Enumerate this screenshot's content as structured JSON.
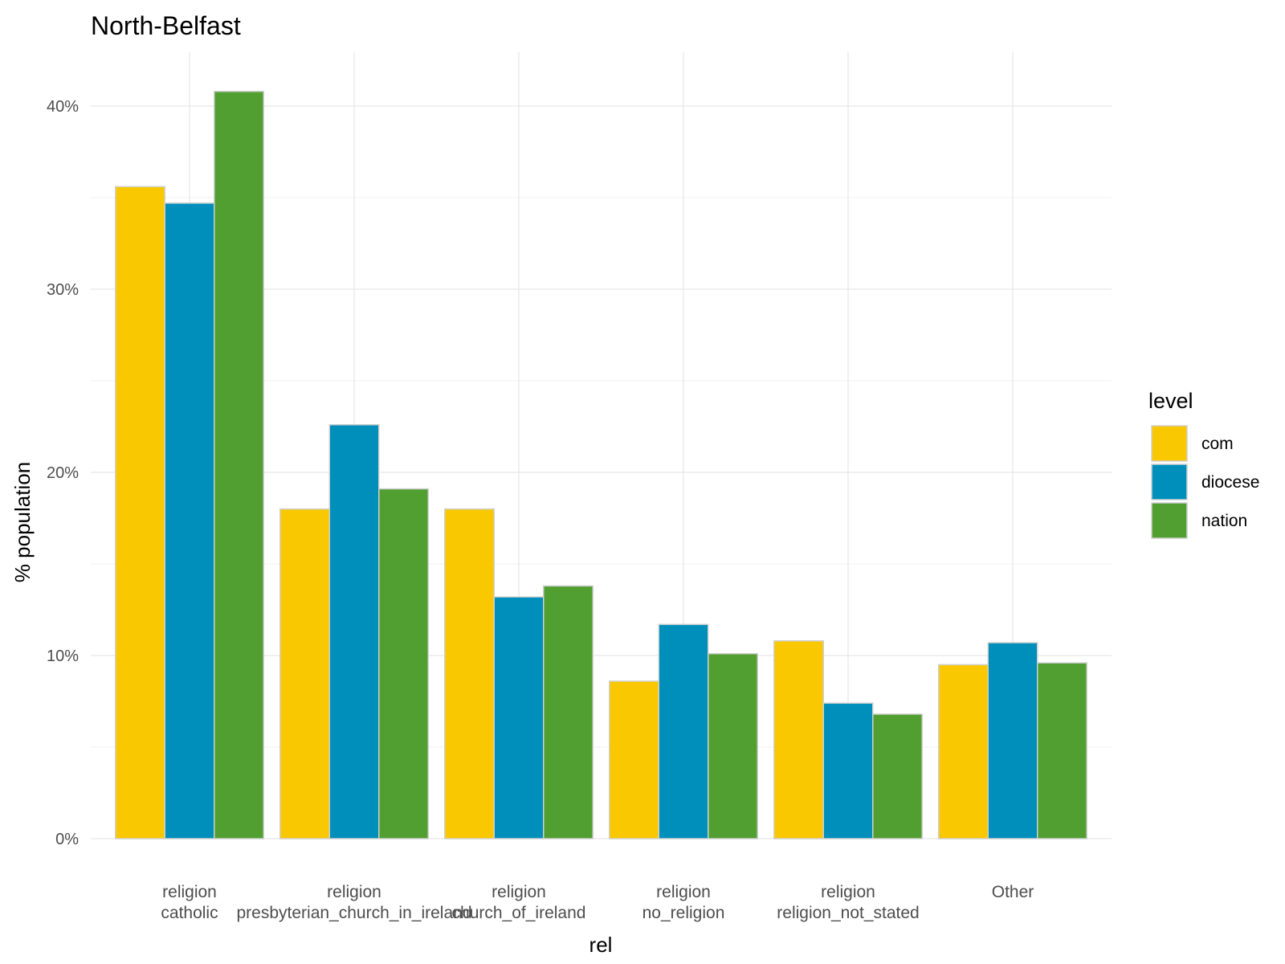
{
  "chart_data": {
    "type": "bar",
    "title": "North-Belfast",
    "xlabel": "rel",
    "ylabel": "% population",
    "ylim": [
      0,
      42
    ],
    "yticks": [
      0,
      10,
      20,
      30,
      40
    ],
    "ytick_labels": [
      "0%",
      "10%",
      "20%",
      "30%",
      "40%"
    ],
    "grid": true,
    "legend_position": "right",
    "legend_title": "level",
    "categories": [
      [
        "religion",
        "catholic"
      ],
      [
        "religion",
        "presbyterian_church_in_ireland"
      ],
      [
        "religion",
        "church_of_ireland"
      ],
      [
        "religion",
        "no_religion"
      ],
      [
        "religion",
        "religion_not_stated"
      ],
      [
        "Other"
      ]
    ],
    "series": [
      {
        "name": "com",
        "color": "#F9C800",
        "values": [
          35.6,
          18.0,
          18.0,
          8.6,
          10.8,
          9.5
        ]
      },
      {
        "name": "diocese",
        "color": "#008FBB",
        "values": [
          34.7,
          22.6,
          13.2,
          11.7,
          7.4,
          10.7
        ]
      },
      {
        "name": "nation",
        "color": "#519F31",
        "values": [
          40.8,
          19.1,
          13.8,
          10.1,
          6.8,
          9.6
        ]
      }
    ]
  }
}
